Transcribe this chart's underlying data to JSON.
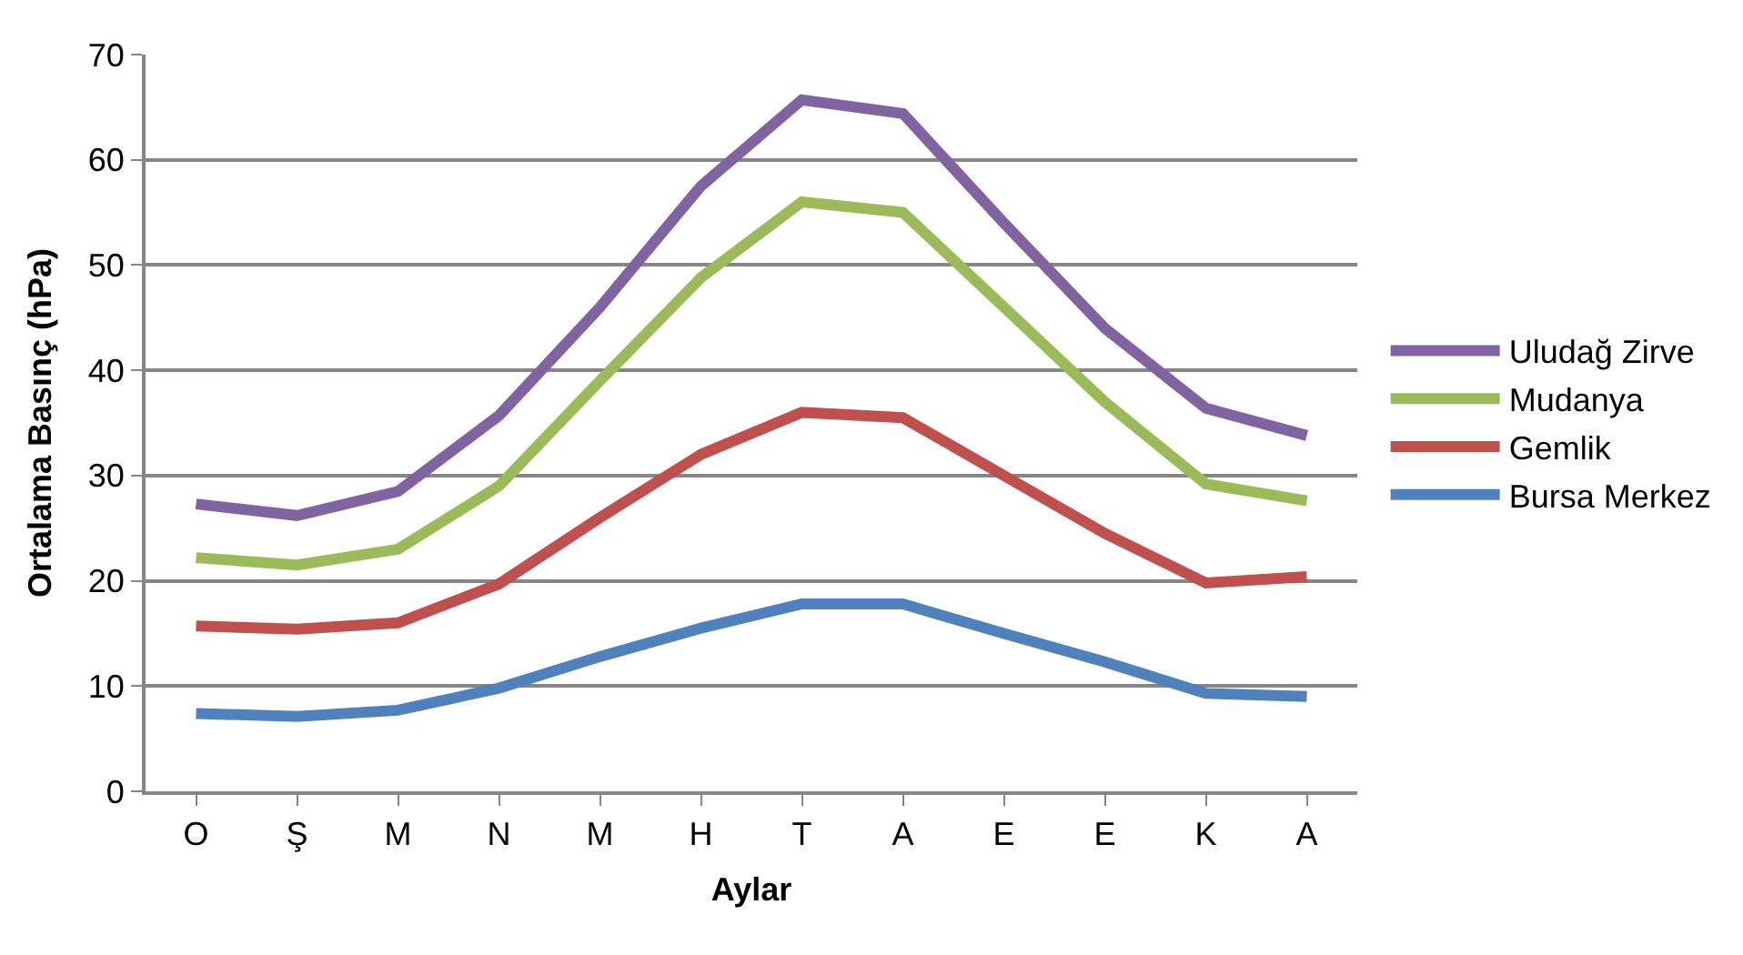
{
  "chart_data": {
    "type": "line",
    "xlabel": "Aylar",
    "ylabel": "Ortalama Basınç (hPa)",
    "categories": [
      "O",
      "Ş",
      "M",
      "N",
      "M",
      "H",
      "T",
      "A",
      "E",
      "E",
      "K",
      "A"
    ],
    "series": [
      {
        "name": "Uludağ Zirve",
        "color": "#8064a2",
        "values": [
          27.3,
          26.2,
          28.5,
          35.7,
          46,
          57.5,
          65.7,
          64.4,
          54,
          44,
          36.4,
          33.8
        ]
      },
      {
        "name": "Mudanya",
        "color": "#9bbb59",
        "values": [
          22.2,
          21.5,
          23,
          29,
          39,
          48.8,
          56,
          55,
          46,
          37,
          29.2,
          27.6
        ]
      },
      {
        "name": "Gemlik",
        "color": "#c0504d",
        "values": [
          15.7,
          15.4,
          16,
          19.7,
          26,
          32,
          36,
          35.5,
          30,
          24.5,
          19.8,
          20.4
        ]
      },
      {
        "name": "Bursa Merkez",
        "color": "#4f81bd",
        "values": [
          7.4,
          7.1,
          7.7,
          9.8,
          12.8,
          15.5,
          17.8,
          17.8,
          15,
          12.3,
          9.3,
          9
        ]
      }
    ],
    "ylim": [
      0,
      70
    ],
    "yticks": [
      0,
      10,
      20,
      30,
      40,
      50,
      60,
      70
    ],
    "grid": "y",
    "legend": "right",
    "marker": "none",
    "line_style": "solid"
  }
}
